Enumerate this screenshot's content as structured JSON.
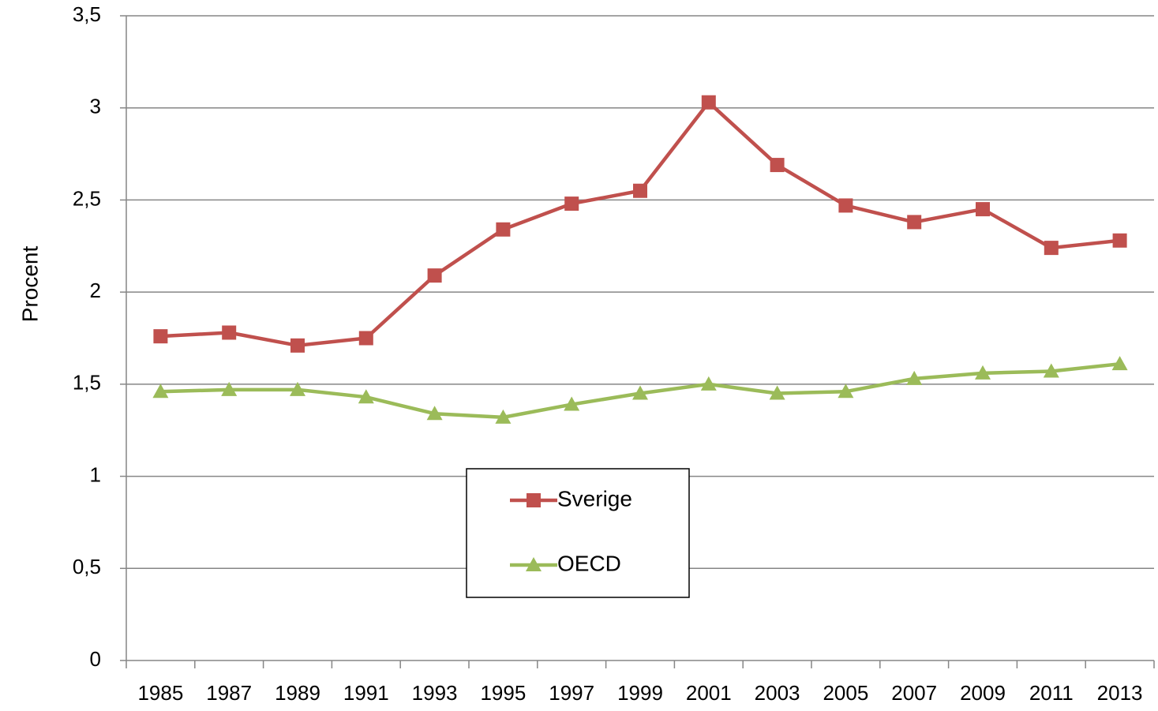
{
  "chart_data": {
    "type": "line",
    "title": "",
    "xlabel": "",
    "ylabel": "Procent",
    "ylim": [
      0,
      3.5
    ],
    "y_ticks": [
      "0",
      "0,5",
      "1",
      "1,5",
      "2",
      "2,5",
      "3",
      "3,5"
    ],
    "categories": [
      "1985",
      "1987",
      "1989",
      "1991",
      "1993",
      "1995",
      "1997",
      "1999",
      "2001",
      "2003",
      "2005",
      "2007",
      "2009",
      "2011",
      "2013"
    ],
    "grid": "horizontal",
    "legend": "center",
    "series": [
      {
        "name": "Sverige",
        "color": "#C0504D",
        "marker": "square",
        "values": [
          1.76,
          1.78,
          1.71,
          1.75,
          2.09,
          2.34,
          2.48,
          2.55,
          3.03,
          2.69,
          2.47,
          2.38,
          2.45,
          2.24,
          2.28
        ]
      },
      {
        "name": "OECD",
        "color": "#9BBB59",
        "marker": "triangle",
        "values": [
          1.46,
          1.47,
          1.47,
          1.43,
          1.34,
          1.32,
          1.39,
          1.45,
          1.5,
          1.45,
          1.46,
          1.53,
          1.56,
          1.57,
          1.61
        ]
      }
    ]
  }
}
